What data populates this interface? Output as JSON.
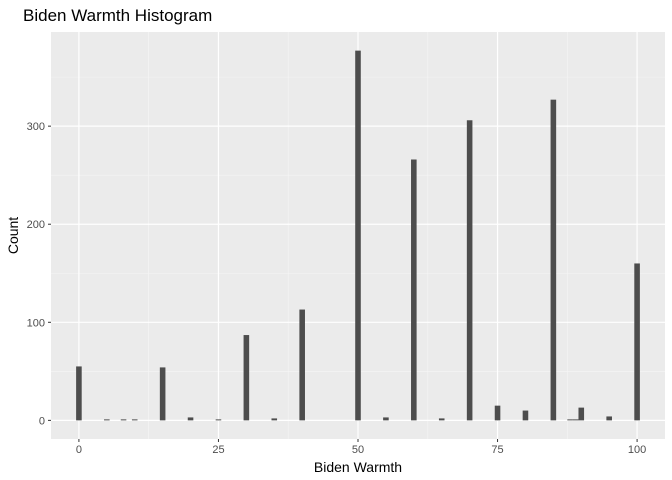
{
  "chart_data": {
    "type": "bar",
    "title": "Biden Warmth Histogram",
    "xlabel": "Biden Warmth",
    "ylabel": "Count",
    "xlim": [
      -5,
      105
    ],
    "ylim": [
      -19,
      396
    ],
    "x_ticks": [
      0,
      25,
      50,
      75,
      100
    ],
    "x_tick_labels": [
      "0",
      "25",
      "50",
      "75",
      "100"
    ],
    "y_ticks": [
      0,
      100,
      200,
      300
    ],
    "y_tick_labels": [
      "0",
      "100",
      "200",
      "300"
    ],
    "grid": true,
    "legend": "none",
    "bar_width": 1,
    "bins": [
      {
        "x": 0,
        "count": 55
      },
      {
        "x": 5,
        "count": 1
      },
      {
        "x": 8,
        "count": 1
      },
      {
        "x": 10,
        "count": 1
      },
      {
        "x": 15,
        "count": 54
      },
      {
        "x": 20,
        "count": 3
      },
      {
        "x": 25,
        "count": 1
      },
      {
        "x": 30,
        "count": 87
      },
      {
        "x": 35,
        "count": 2
      },
      {
        "x": 40,
        "count": 113
      },
      {
        "x": 50,
        "count": 377
      },
      {
        "x": 55,
        "count": 3
      },
      {
        "x": 60,
        "count": 266
      },
      {
        "x": 65,
        "count": 2
      },
      {
        "x": 70,
        "count": 306
      },
      {
        "x": 75,
        "count": 15
      },
      {
        "x": 80,
        "count": 10
      },
      {
        "x": 85,
        "count": 327
      },
      {
        "x": 88,
        "count": 1
      },
      {
        "x": 89,
        "count": 1
      },
      {
        "x": 90,
        "count": 13
      },
      {
        "x": 95,
        "count": 4
      },
      {
        "x": 100,
        "count": 160
      }
    ],
    "colors": {
      "bar": "#4d4d4d",
      "panel": "#ebebeb",
      "grid_major": "#ffffff",
      "grid_minor": "#f5f5f5",
      "tick": "#333333"
    }
  }
}
